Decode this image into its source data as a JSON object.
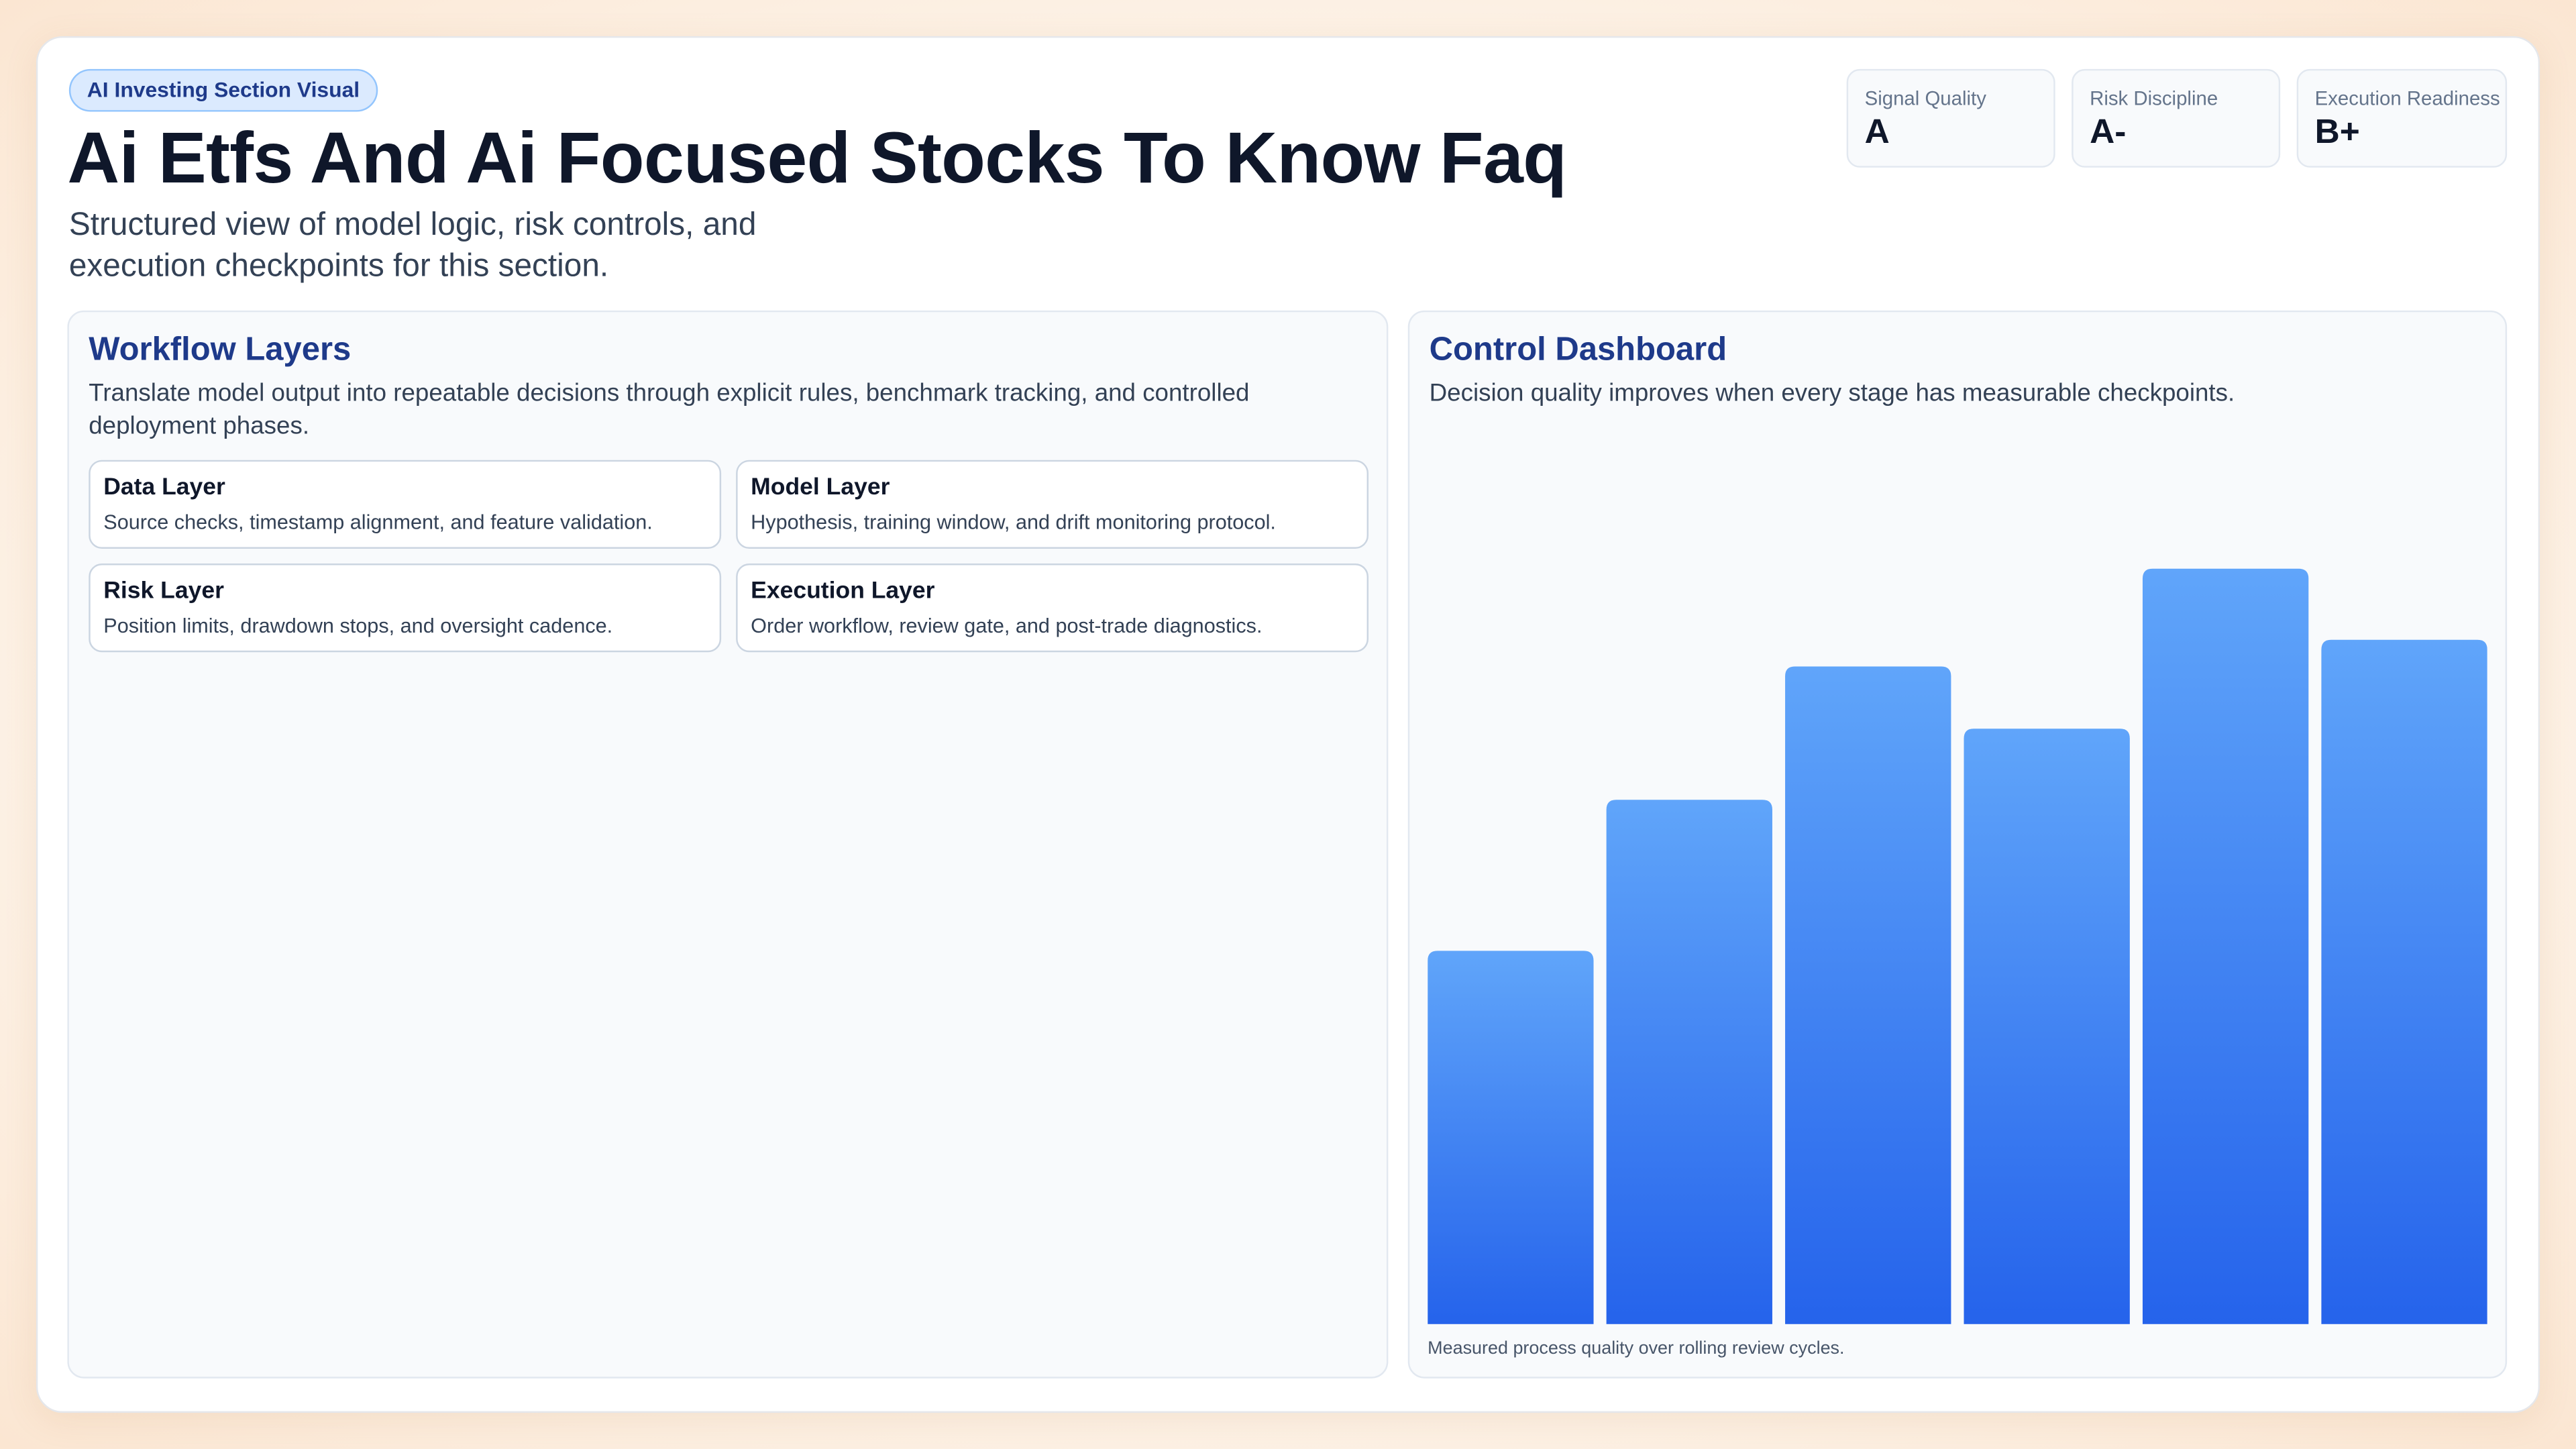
{
  "header": {
    "badge": "AI Investing Section Visual",
    "title": "Ai Etfs And Ai Focused Stocks To Know Faq",
    "subtitle": "Structured view of model logic, risk controls, and execution checkpoints for this section."
  },
  "metrics": [
    {
      "label": "Signal Quality",
      "value": "A"
    },
    {
      "label": "Risk Discipline",
      "value": "A-"
    },
    {
      "label": "Execution Readiness",
      "value": "B+"
    }
  ],
  "workflow": {
    "title": "Workflow Layers",
    "description": "Translate model output into repeatable decisions through explicit rules, benchmark tracking, and controlled deployment phases.",
    "cards": [
      {
        "title": "Data Layer",
        "description": "Source checks, timestamp alignment, and feature validation."
      },
      {
        "title": "Model Layer",
        "description": "Hypothesis, training window, and drift monitoring protocol."
      },
      {
        "title": "Risk Layer",
        "description": "Position limits, drawdown stops, and oversight cadence."
      },
      {
        "title": "Execution Layer",
        "description": "Order workflow, review gate, and post-trade diagnostics."
      }
    ]
  },
  "chart_data": {
    "type": "bar",
    "title": "Control Dashboard",
    "subtitle": "Decision quality improves when every stage has measurable checkpoints.",
    "caption": "Measured process quality over rolling review cycles.",
    "values": [
      42,
      59,
      74,
      67,
      85,
      77
    ],
    "ylim": [
      0,
      100
    ],
    "gradient": [
      "#60a5fa",
      "#2563eb"
    ]
  }
}
